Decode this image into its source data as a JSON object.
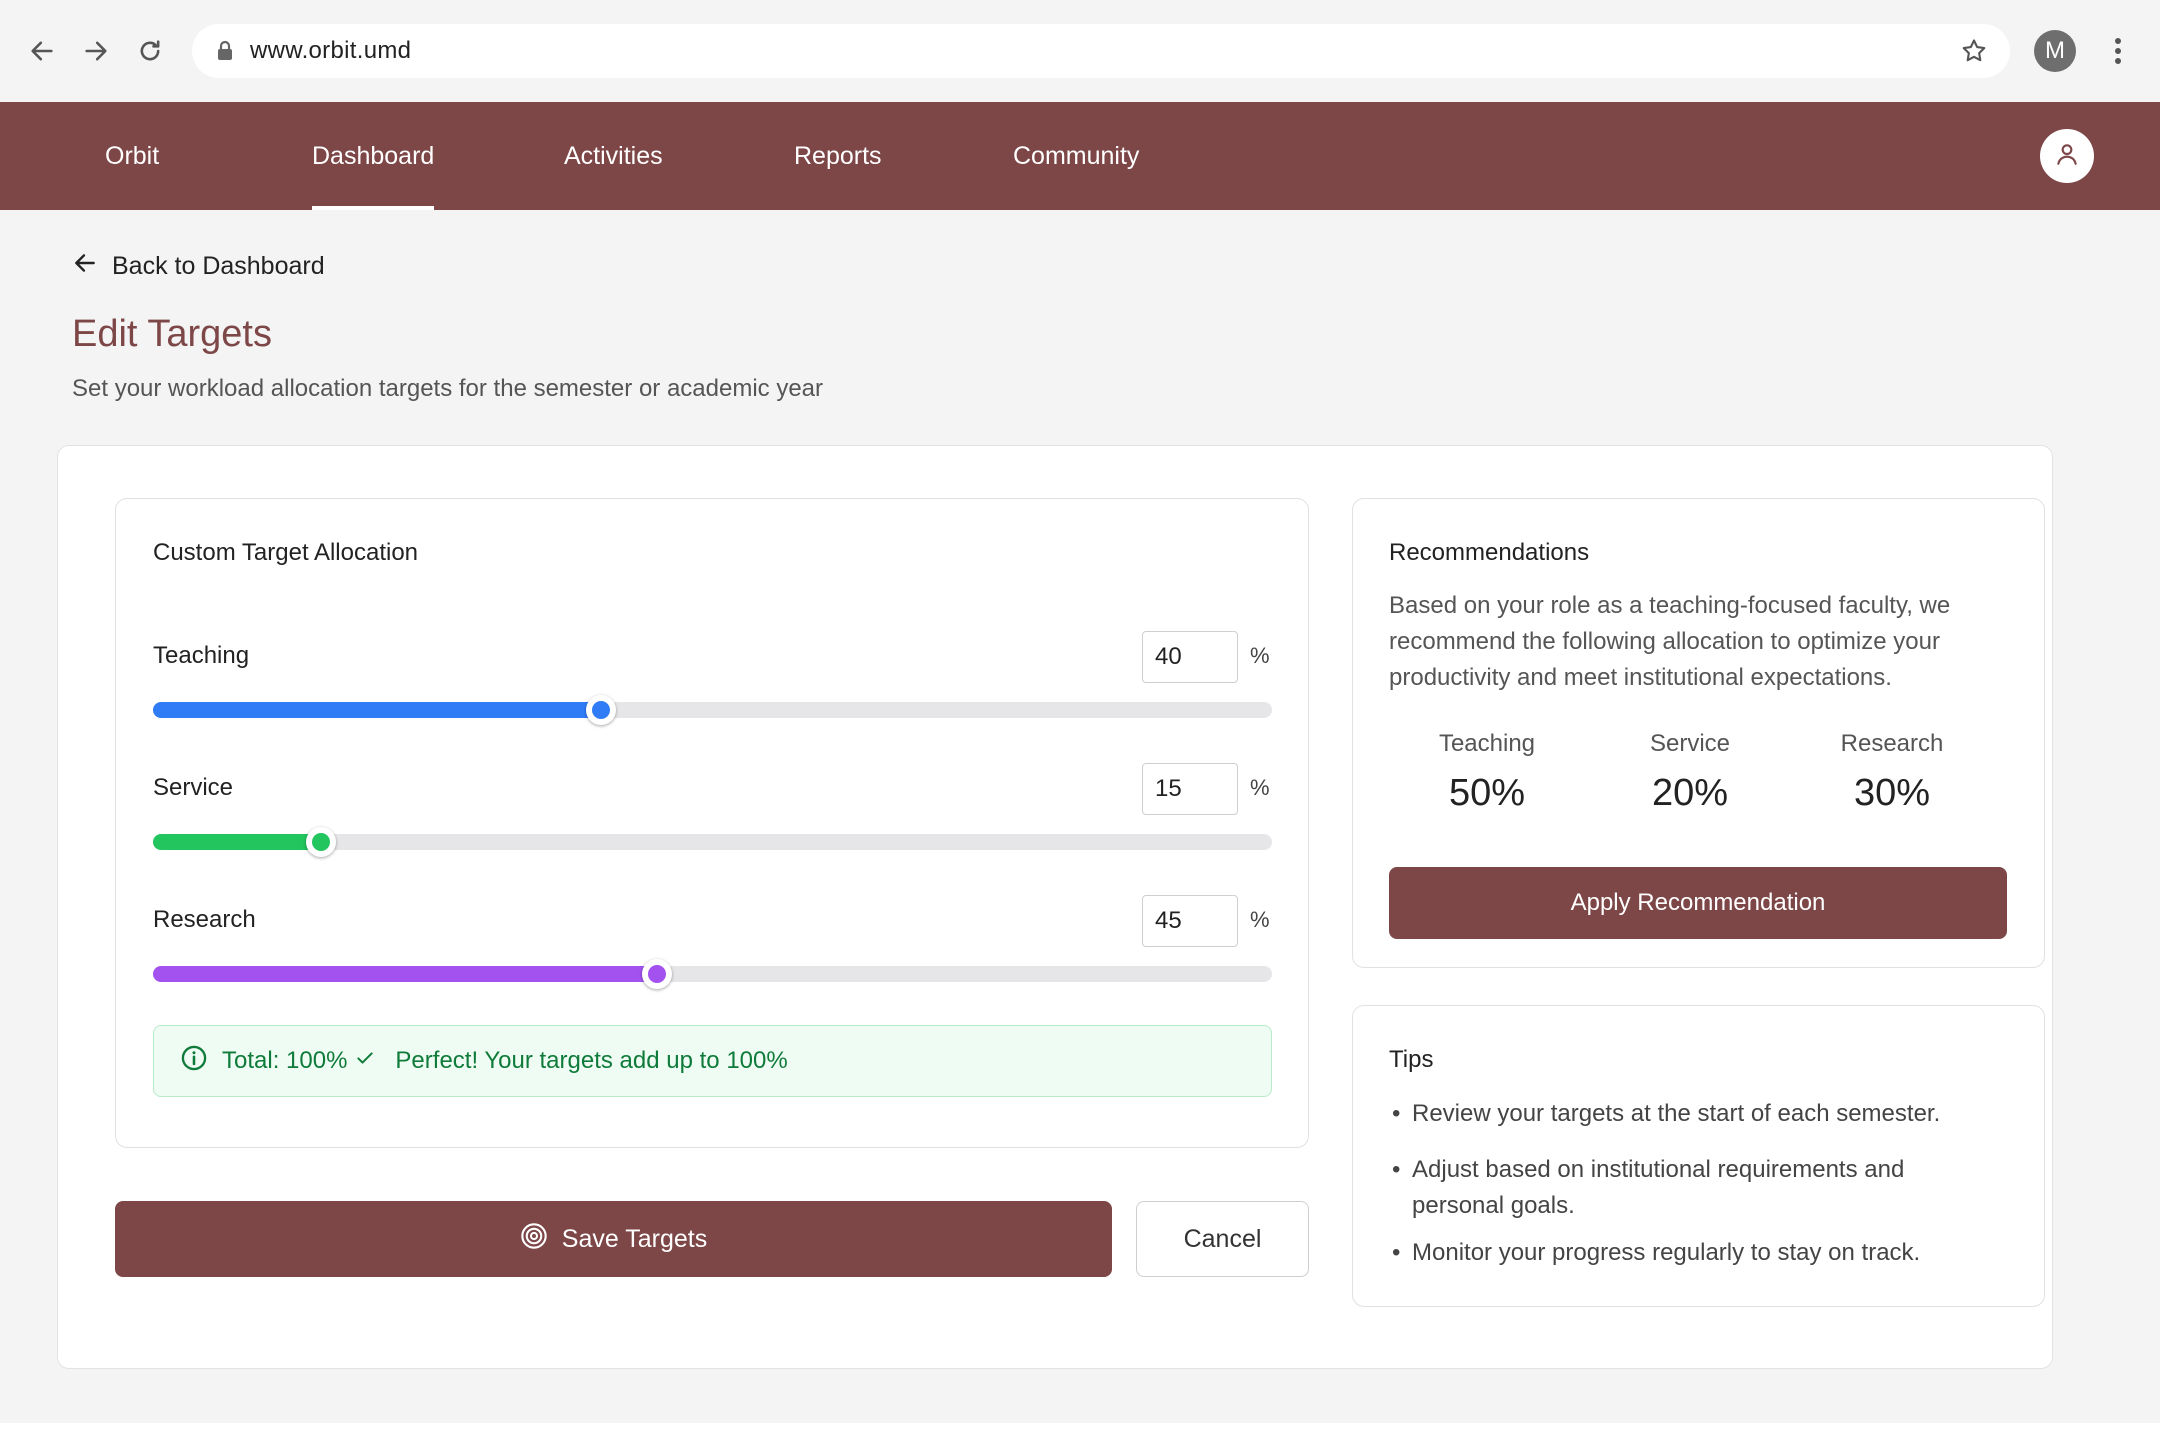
{
  "browser": {
    "url": "www.orbit.umd",
    "profile_initial": "M"
  },
  "appbar": {
    "brand": "Orbit",
    "tabs": [
      {
        "label": "Dashboard",
        "active": true
      },
      {
        "label": "Activities",
        "active": false
      },
      {
        "label": "Reports",
        "active": false
      },
      {
        "label": "Community",
        "active": false
      }
    ]
  },
  "header": {
    "back_label": "Back to Dashboard",
    "title": "Edit Targets",
    "subtitle": "Set your workload allocation targets for the semester or academic year"
  },
  "allocation": {
    "title": "Custom Target Allocation",
    "percent_sign": "%",
    "sliders": [
      {
        "label": "Teaching",
        "value": "40",
        "percent": 40,
        "color": "#2f7cf6"
      },
      {
        "label": "Service",
        "value": "15",
        "percent": 15,
        "color": "#22c55e"
      },
      {
        "label": "Research",
        "value": "45",
        "percent": 45,
        "color": "#a352f0"
      }
    ],
    "total_text": "Total: 100%",
    "total_message": "Perfect! Your targets add up to 100%"
  },
  "actions": {
    "save_label": "Save Targets",
    "cancel_label": "Cancel"
  },
  "recommendations": {
    "title": "Recommendations",
    "body": "Based on your role as a teaching-focused faculty, we recommend the following allocation to optimize your productivity and meet institutional expectations.",
    "items": [
      {
        "label": "Teaching",
        "value": "50%"
      },
      {
        "label": "Service",
        "value": "20%"
      },
      {
        "label": "Research",
        "value": "30%"
      }
    ],
    "apply_label": "Apply Recommendation"
  },
  "tips": {
    "title": "Tips",
    "items": [
      "Review your targets at the start of each semester.",
      "Adjust based on institutional requirements and personal goals.",
      "Monitor your progress regularly to stay on track."
    ]
  },
  "colors": {
    "brand": "#7d4647",
    "success": "#0f7b3a"
  }
}
